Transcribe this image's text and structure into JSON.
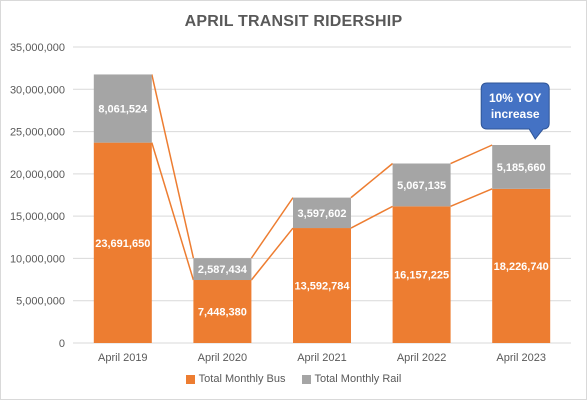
{
  "chart_data": {
    "type": "bar",
    "stacked": true,
    "title": "APRIL TRANSIT RIDERSHIP",
    "categories": [
      "April 2019",
      "April 2020",
      "April 2021",
      "April 2022",
      "April 2023"
    ],
    "series": [
      {
        "name": "Total Monthly Bus",
        "values": [
          23691650,
          7448380,
          13592784,
          16157225,
          18226740
        ],
        "labels": [
          "23,691,650",
          "7,448,380",
          "13,592,784",
          "16,157,225",
          "18,226,740"
        ],
        "color": "#ED7D31"
      },
      {
        "name": "Total Monthly Rail",
        "values": [
          8061524,
          2587434,
          3597602,
          5067135,
          5185660
        ],
        "labels": [
          "8,061,524",
          "2,587,434",
          "3,597,602",
          "5,067,135",
          "5,185,660"
        ],
        "color": "#A5A5A5"
      }
    ],
    "ylim": [
      0,
      35000000
    ],
    "yticks": [
      0,
      5000000,
      10000000,
      15000000,
      20000000,
      25000000,
      30000000,
      35000000
    ],
    "ytick_labels": [
      "0",
      "5,000,000",
      "10,000,000",
      "15,000,000",
      "20,000,000",
      "25,000,000",
      "30,000,000",
      "35,000,000"
    ],
    "grid": true,
    "legend_position": "bottom",
    "series_lines": true,
    "annotation": {
      "text_line1": "10% YOY",
      "text_line2": "increase",
      "color": "#4472C4",
      "category": "April 2023"
    }
  }
}
